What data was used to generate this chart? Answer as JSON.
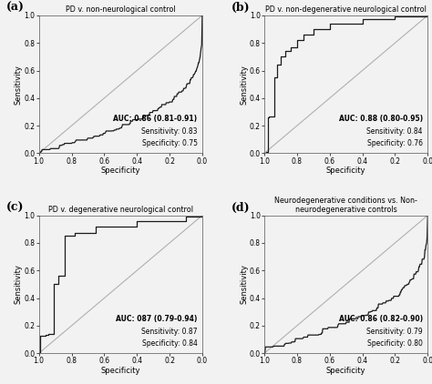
{
  "panels": [
    {
      "label": "(a)",
      "title": "PD v. non-neurological control",
      "auc_text": "AUC: 0.86 (0.81-0.91)",
      "sens_text": "Sensitivity: 0.83",
      "spec_text": "Specificity: 0.75",
      "roc_type": "a"
    },
    {
      "label": "(b)",
      "title": "PD v. non-degenerative neurological control",
      "auc_text": "AUC: 0.88 (0.80-0.95)",
      "sens_text": "Sensitivity: 0.84",
      "spec_text": "Specificity: 0.76",
      "roc_type": "b"
    },
    {
      "label": "(c)",
      "title": "PD v. degenerative neurological control",
      "auc_text": "AUC: 087 (0.79-0.94)",
      "sens_text": "Sensitivity: 0.87",
      "spec_text": "Specificity: 0.84",
      "roc_type": "c"
    },
    {
      "label": "(d)",
      "title": "Neurodegenerative conditions vs. Non-\nneurodegenerative controls",
      "auc_text": "AUC: 0.86 (0.82-0.90)",
      "sens_text": "Sensitivity: 0.79",
      "spec_text": "Specificity: 0.80",
      "roc_type": "d"
    }
  ],
  "background_color": "#f2f2f2",
  "curve_color": "#1a1a1a",
  "diag_color": "#b0b0b0",
  "text_color": "#000000",
  "xlabel": "Specificity",
  "ylabel": "Sensitivity"
}
